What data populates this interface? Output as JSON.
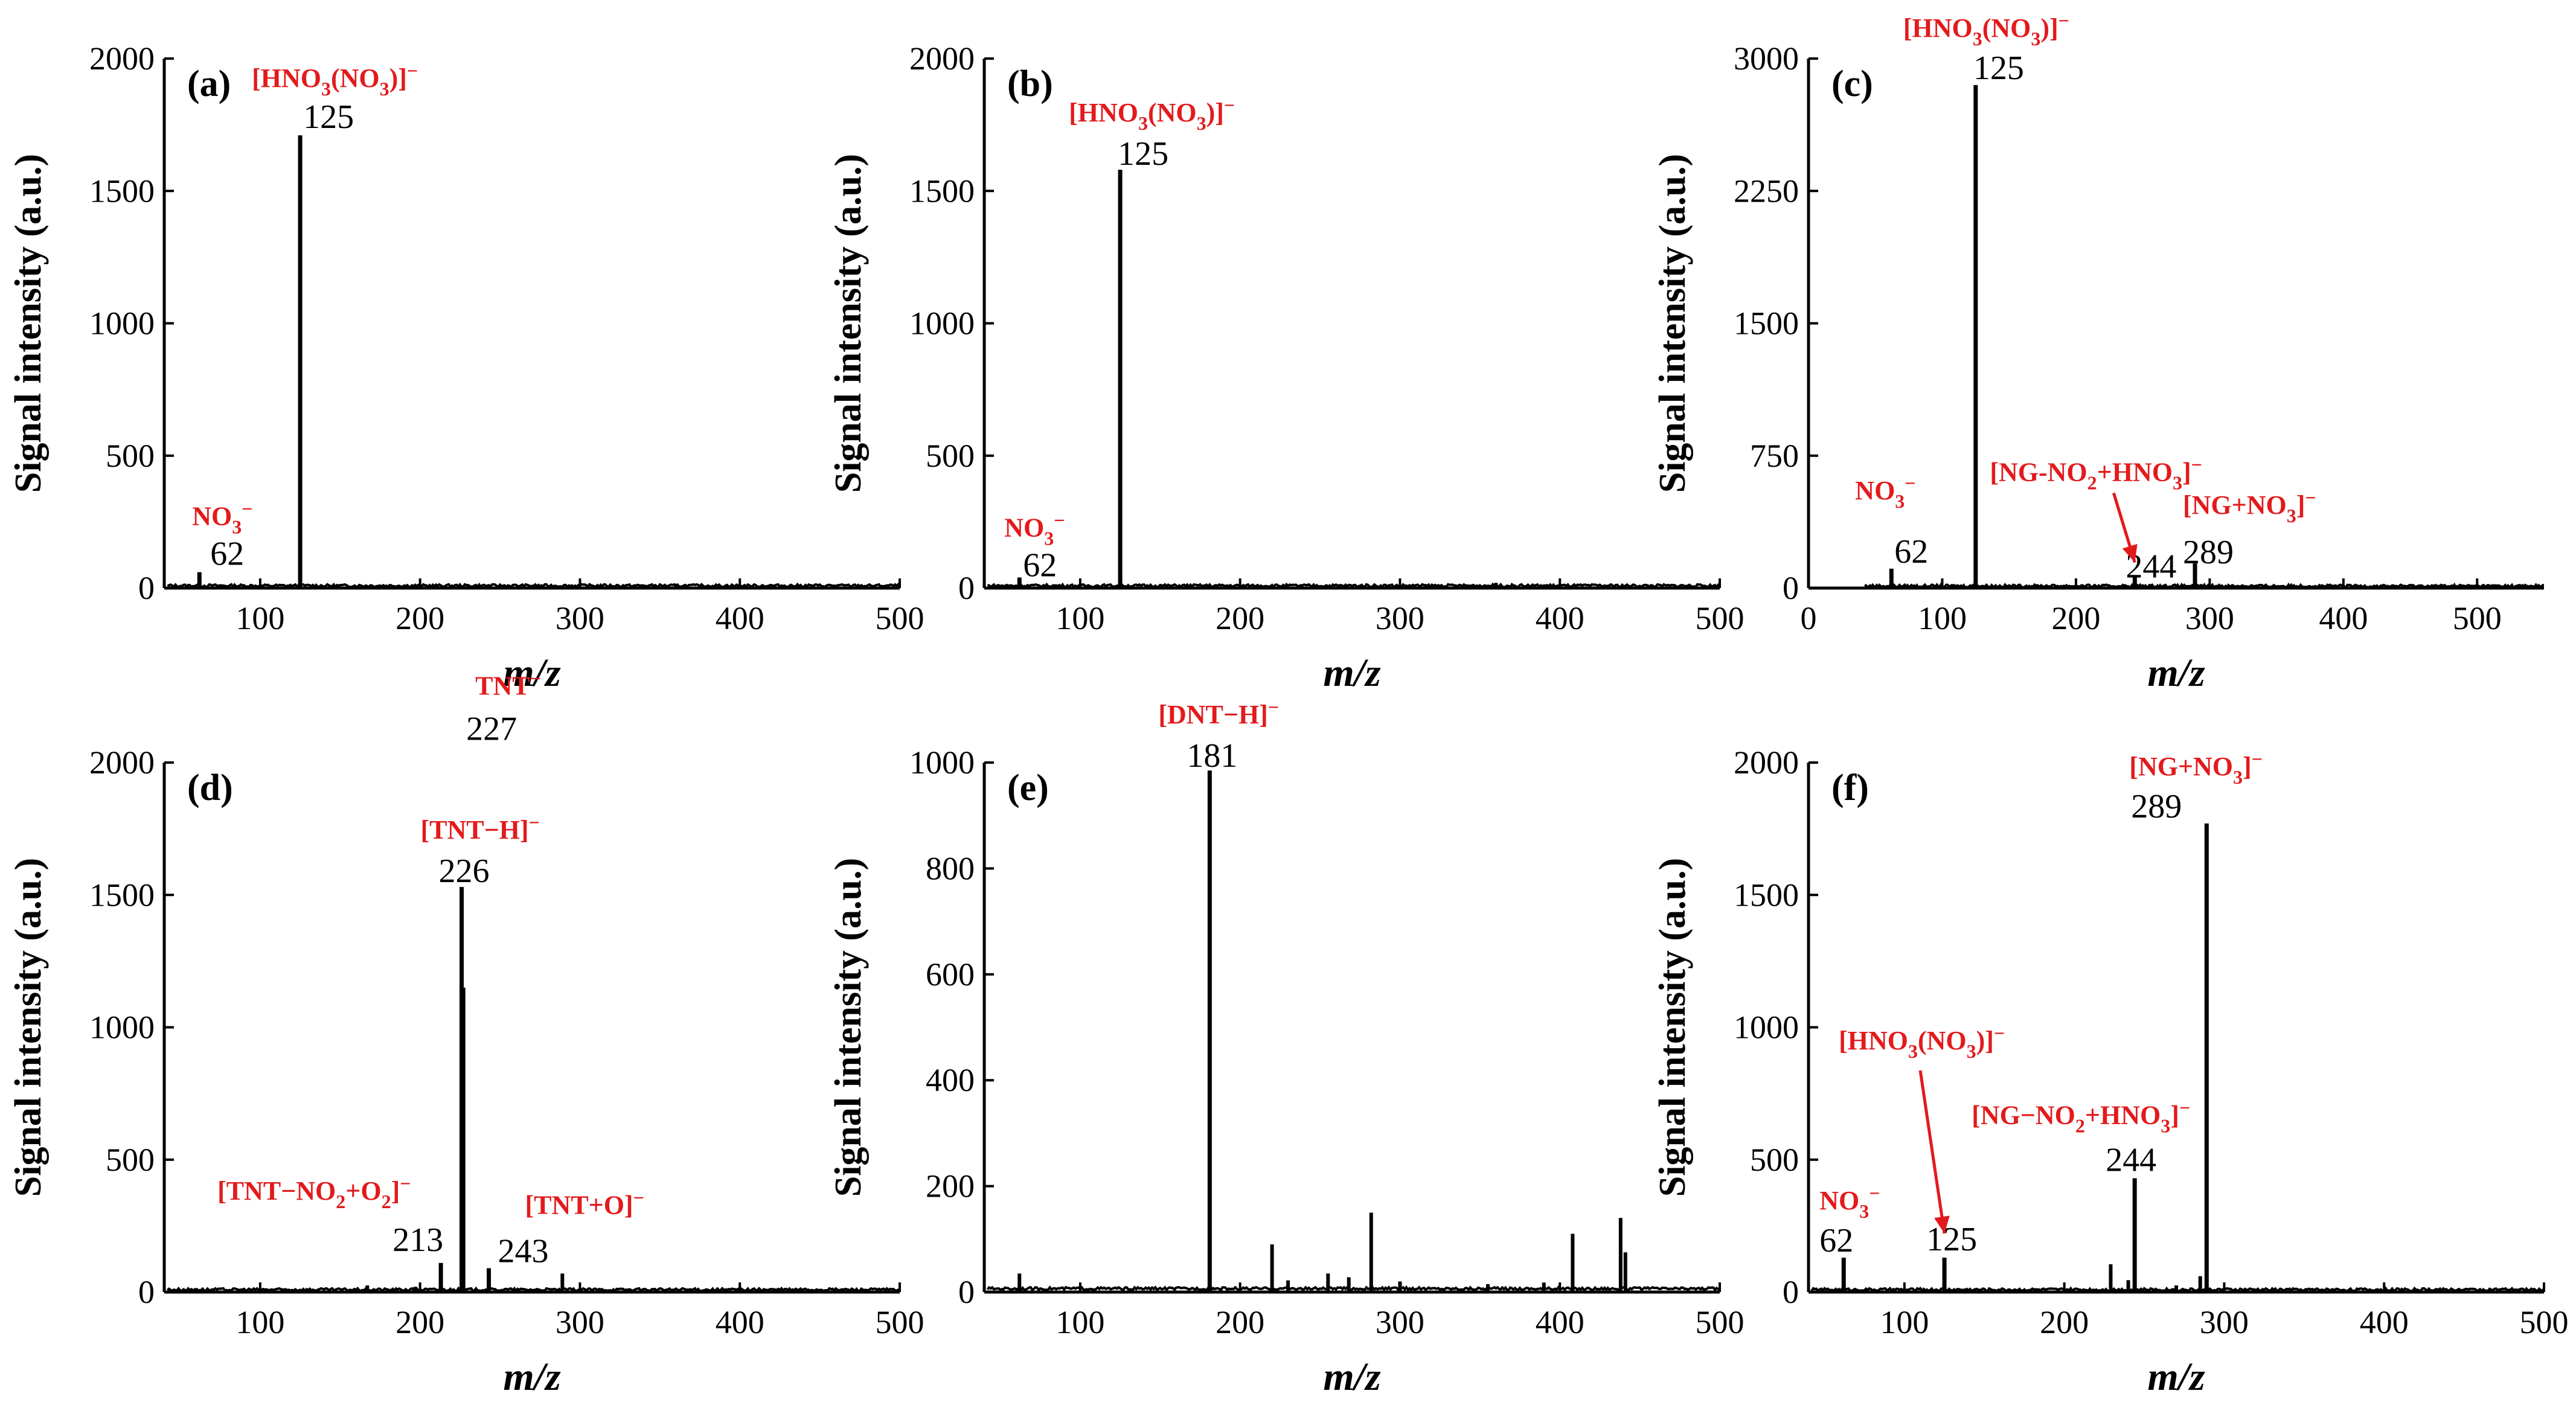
{
  "colors": {
    "annotation": "#e31a1c",
    "trace": "#000000"
  },
  "chart_data": [
    {
      "type": "line",
      "panel": "(a)",
      "xlabel": "m/z",
      "ylabel": "Signal intensity (a.u.)",
      "xlim": [
        40,
        500
      ],
      "ylim": [
        0,
        2000
      ],
      "xticks": [
        100,
        200,
        300,
        400,
        500
      ],
      "yticks": [
        0,
        500,
        1000,
        1500,
        2000
      ],
      "peaks": [
        {
          "x": 62,
          "y": 60,
          "number": "62",
          "ion": "NO3−"
        },
        {
          "x": 125,
          "y": 1710,
          "number": "125",
          "ion": "[HNO3(NO3)]−"
        }
      ],
      "minor_peaks": [
        [
          230,
          12
        ],
        [
          360,
          14
        ]
      ]
    },
    {
      "type": "line",
      "panel": "(b)",
      "xlabel": "m/z",
      "ylabel": "Signal intensity (a.u.)",
      "xlim": [
        40,
        500
      ],
      "ylim": [
        0,
        2000
      ],
      "xticks": [
        100,
        200,
        300,
        400,
        500
      ],
      "yticks": [
        0,
        500,
        1000,
        1500,
        2000
      ],
      "peaks": [
        {
          "x": 62,
          "y": 40,
          "number": "62",
          "ion": "NO3−"
        },
        {
          "x": 125,
          "y": 1580,
          "number": "125",
          "ion": "[HNO3(NO3)]−"
        }
      ],
      "minor_peaks": [
        [
          360,
          20
        ]
      ]
    },
    {
      "type": "line",
      "panel": "(c)",
      "xlabel": "m/z",
      "ylabel": "Signal intensity (a.u.)",
      "xlim": [
        0,
        550
      ],
      "ylim": [
        0,
        3000
      ],
      "xticks": [
        0,
        100,
        200,
        300,
        400,
        500
      ],
      "yticks": [
        0,
        750,
        1500,
        2250,
        3000
      ],
      "peaks": [
        {
          "x": 62,
          "y": 110,
          "number": "62",
          "ion": "NO3−"
        },
        {
          "x": 125,
          "y": 2850,
          "number": "125",
          "ion": "[HNO3(NO3)]−"
        },
        {
          "x": 244,
          "y": 60,
          "number": "244",
          "ion": "[NG-NO2+HNO3]−"
        },
        {
          "x": 289,
          "y": 140,
          "number": "289",
          "ion": "[NG+NO3]−"
        }
      ],
      "minor_peaks": []
    },
    {
      "type": "line",
      "panel": "(d)",
      "xlabel": "m/z",
      "ylabel": "Signal intensity (a.u.)",
      "xlim": [
        40,
        500
      ],
      "ylim": [
        0,
        2000
      ],
      "xticks": [
        100,
        200,
        300,
        400,
        500
      ],
      "yticks": [
        0,
        500,
        1000,
        1500,
        2000
      ],
      "peaks": [
        {
          "x": 213,
          "y": 110,
          "number": "213",
          "ion": "[TNT−NO2+O2]−"
        },
        {
          "x": 226,
          "y": 1530,
          "number": "226",
          "ion": "[TNT−H]−"
        },
        {
          "x": 227,
          "y": 1150,
          "number": "227",
          "ion": "TNT−"
        },
        {
          "x": 243,
          "y": 90,
          "number": "243",
          "ion": "[TNT+O]−"
        }
      ],
      "minor_peaks": [
        [
          167,
          25
        ],
        [
          197,
          20
        ],
        [
          289,
          70
        ],
        [
          60,
          15
        ]
      ]
    },
    {
      "type": "line",
      "panel": "(e)",
      "xlabel": "m/z",
      "ylabel": "Signal intensity (a.u.)",
      "xlim": [
        40,
        500
      ],
      "ylim": [
        0,
        1000
      ],
      "xticks": [
        100,
        200,
        300,
        400,
        500
      ],
      "yticks": [
        0,
        200,
        400,
        600,
        800,
        1000
      ],
      "peaks": [
        {
          "x": 181,
          "y": 985,
          "number": "181",
          "ion": "[DNT−H]−"
        }
      ],
      "minor_peaks": [
        [
          62,
          35
        ],
        [
          220,
          90
        ],
        [
          230,
          22
        ],
        [
          255,
          35
        ],
        [
          268,
          28
        ],
        [
          282,
          150
        ],
        [
          300,
          20
        ],
        [
          408,
          110
        ],
        [
          438,
          140
        ],
        [
          441,
          75
        ],
        [
          390,
          18
        ],
        [
          355,
          15
        ]
      ]
    },
    {
      "type": "line",
      "panel": "(f)",
      "xlabel": "m/z",
      "ylabel": "Signal intensity (a.u.)",
      "xlim": [
        40,
        500
      ],
      "ylim": [
        0,
        2000
      ],
      "xticks": [
        100,
        200,
        300,
        400,
        500
      ],
      "yticks": [
        0,
        500,
        1000,
        1500,
        2000
      ],
      "peaks": [
        {
          "x": 62,
          "y": 130,
          "number": "62",
          "ion": "NO3−"
        },
        {
          "x": 125,
          "y": 130,
          "number": "125",
          "ion": "[HNO3(NO3)]−"
        },
        {
          "x": 244,
          "y": 430,
          "number": "244",
          "ion": "[NG−NO2+HNO3]−"
        },
        {
          "x": 289,
          "y": 1770,
          "number": "289",
          "ion": "[NG+NO3]−"
        }
      ],
      "minor_peaks": [
        [
          229,
          105
        ],
        [
          240,
          45
        ],
        [
          285,
          60
        ],
        [
          270,
          25
        ]
      ]
    }
  ]
}
